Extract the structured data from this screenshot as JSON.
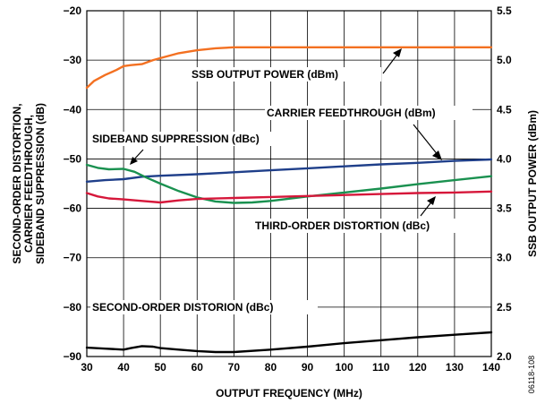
{
  "chart_data": {
    "type": "line",
    "xlabel": "OUTPUT FREQUENCY (MHz)",
    "ylabel_left": [
      "SECOND-ORDER DISTORTION,",
      "CARRIER FEEDTHROUGH,",
      "SIDEBAND SUPPRESSION (dB)"
    ],
    "ylabel_right": "SSB OUTPUT POWER (dBm)",
    "xlim": [
      30,
      140
    ],
    "ylim_left": [
      -90,
      -20
    ],
    "ylim_right": [
      2.0,
      5.5
    ],
    "x_ticks": [
      "30",
      "40",
      "50",
      "60",
      "70",
      "80",
      "90",
      "100",
      "110",
      "120",
      "130",
      "140"
    ],
    "y_left_ticks": [
      "-20",
      "-30",
      "-40",
      "-50",
      "-60",
      "-70",
      "-80",
      "-90"
    ],
    "y_right_ticks": [
      "5.5",
      "5.0",
      "4.5",
      "4.0",
      "3.5",
      "3.0",
      "2.5",
      "2.0"
    ],
    "grid": true,
    "series": [
      {
        "name": "SSB OUTPUT POWER (dBm)",
        "axis": "right",
        "color": "#f37021",
        "points": [
          [
            30,
            4.72
          ],
          [
            32,
            4.79
          ],
          [
            35,
            4.85
          ],
          [
            38,
            4.9
          ],
          [
            40,
            4.94
          ],
          [
            42,
            4.95
          ],
          [
            45,
            4.96
          ],
          [
            48,
            5.0
          ],
          [
            50,
            5.02
          ],
          [
            55,
            5.07
          ],
          [
            60,
            5.1
          ],
          [
            65,
            5.12
          ],
          [
            70,
            5.13
          ],
          [
            80,
            5.13
          ],
          [
            90,
            5.13
          ],
          [
            100,
            5.13
          ],
          [
            110,
            5.13
          ],
          [
            120,
            5.13
          ],
          [
            130,
            5.13
          ],
          [
            140,
            5.13
          ]
        ]
      },
      {
        "name": "CARRIER FEEDTHROUGH (dBm)",
        "axis": "left",
        "color": "#1f3f8a",
        "points": [
          [
            30,
            -54.6
          ],
          [
            35,
            -54.3
          ],
          [
            40,
            -54.1
          ],
          [
            45,
            -53.6
          ],
          [
            50,
            -53.4
          ],
          [
            60,
            -53.1
          ],
          [
            70,
            -52.7
          ],
          [
            80,
            -52.3
          ],
          [
            90,
            -51.9
          ],
          [
            100,
            -51.5
          ],
          [
            110,
            -51.1
          ],
          [
            120,
            -50.8
          ],
          [
            130,
            -50.4
          ],
          [
            140,
            -50.1
          ]
        ]
      },
      {
        "name": "SIDEBAND SUPPRESSION (dBc)",
        "axis": "left",
        "color": "#1a9150",
        "points": [
          [
            30,
            -51.2
          ],
          [
            33,
            -51.8
          ],
          [
            36,
            -52.1
          ],
          [
            40,
            -52.0
          ],
          [
            43,
            -52.6
          ],
          [
            46,
            -53.7
          ],
          [
            50,
            -55.0
          ],
          [
            55,
            -56.5
          ],
          [
            60,
            -57.8
          ],
          [
            65,
            -58.6
          ],
          [
            70,
            -58.9
          ],
          [
            75,
            -58.8
          ],
          [
            80,
            -58.5
          ],
          [
            90,
            -57.6
          ],
          [
            100,
            -56.8
          ],
          [
            110,
            -56.0
          ],
          [
            120,
            -55.1
          ],
          [
            130,
            -54.3
          ],
          [
            140,
            -53.5
          ]
        ]
      },
      {
        "name": "THIRD-ORDER DISTORTION (dBc)",
        "axis": "left",
        "color": "#d6173a",
        "points": [
          [
            30,
            -56.9
          ],
          [
            33,
            -57.6
          ],
          [
            36,
            -58.0
          ],
          [
            40,
            -58.2
          ],
          [
            45,
            -58.5
          ],
          [
            50,
            -58.8
          ],
          [
            55,
            -58.4
          ],
          [
            60,
            -58.1
          ],
          [
            70,
            -57.9
          ],
          [
            80,
            -57.7
          ],
          [
            90,
            -57.5
          ],
          [
            100,
            -57.3
          ],
          [
            110,
            -57.1
          ],
          [
            120,
            -56.9
          ],
          [
            130,
            -56.8
          ],
          [
            140,
            -56.6
          ]
        ]
      },
      {
        "name": "SECOND-ORDER DISTORION (dBc)",
        "axis": "left",
        "color": "#000000",
        "points": [
          [
            30,
            -88.2
          ],
          [
            35,
            -88.4
          ],
          [
            40,
            -88.6
          ],
          [
            42,
            -88.3
          ],
          [
            45,
            -87.9
          ],
          [
            48,
            -88.0
          ],
          [
            50,
            -88.3
          ],
          [
            55,
            -88.6
          ],
          [
            60,
            -88.9
          ],
          [
            65,
            -89.1
          ],
          [
            70,
            -89.1
          ],
          [
            80,
            -88.6
          ],
          [
            90,
            -88.0
          ],
          [
            100,
            -87.3
          ],
          [
            110,
            -86.7
          ],
          [
            120,
            -86.1
          ],
          [
            130,
            -85.6
          ],
          [
            140,
            -85.1
          ]
        ]
      }
    ]
  },
  "annotations": {
    "ssb": "SSB OUTPUT POWER (dBm)",
    "carrier": "CARRIER FEEDTHROUGH (dBm)",
    "sideband": "SIDEBAND SUPPRESSION (dBc)",
    "third": "THIRD-ORDER DISTORTION (dBc)",
    "second": "SECOND-ORDER DISTORION (dBc)"
  },
  "figure_code": "06118-108"
}
